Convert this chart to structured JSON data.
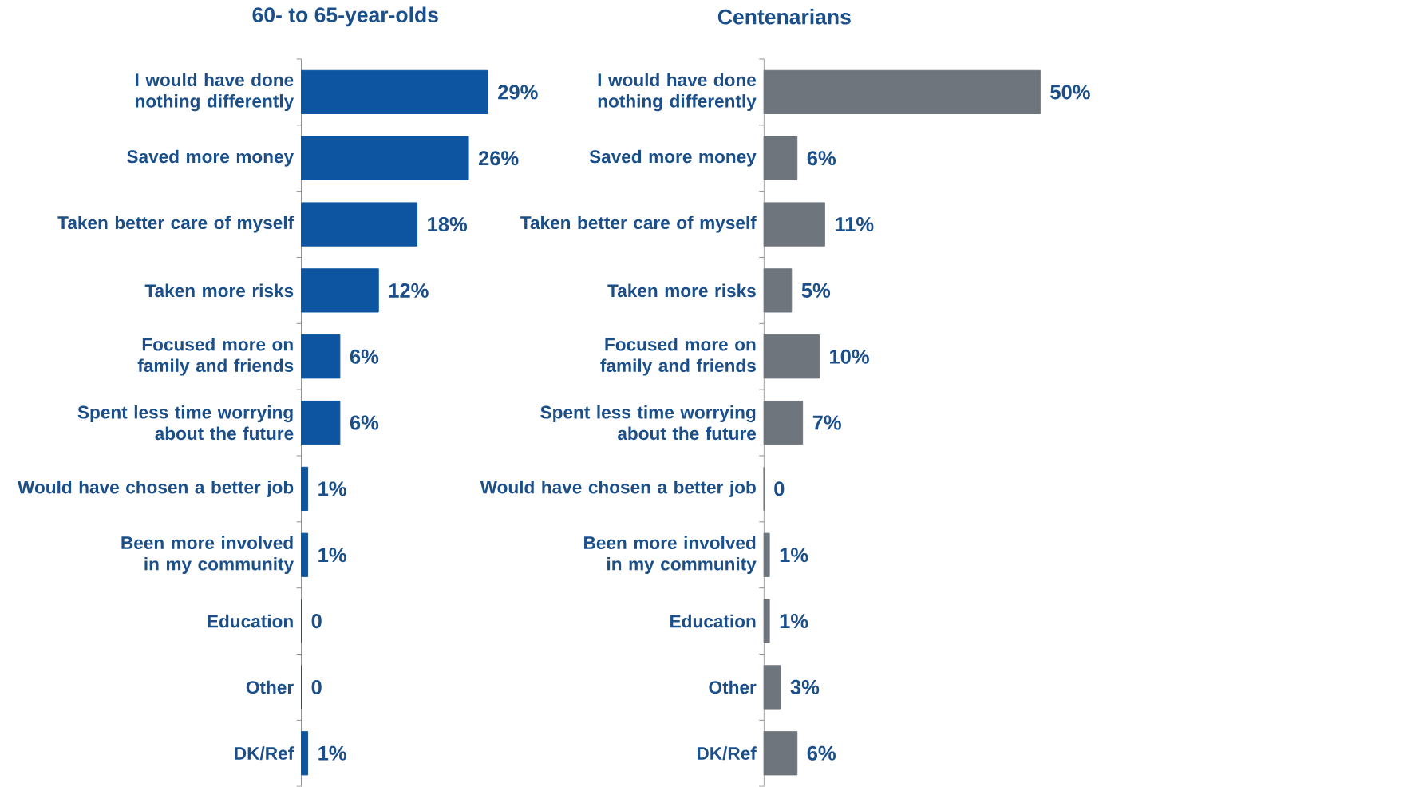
{
  "chart_data": [
    {
      "type": "bar",
      "orientation": "horizontal",
      "title": "60- to 65-year-olds",
      "color": "#0d55a0",
      "categories": [
        "I would have done nothing differently",
        "Saved more money",
        "Taken better care of myself",
        "Taken more risks",
        "Focused more on family and friends",
        "Spent less time worrying about the future",
        "Would have chosen a better job",
        "Been more involved in my community",
        "Education",
        "Other",
        "DK/Ref"
      ],
      "values": [
        29,
        26,
        18,
        12,
        6,
        6,
        1,
        1,
        0,
        0,
        1
      ],
      "value_labels": [
        "29%",
        "26%",
        "18%",
        "12%",
        "6%",
        "6%",
        "1%",
        "1%",
        "0",
        "0",
        "1%"
      ]
    },
    {
      "type": "bar",
      "orientation": "horizontal",
      "title": "Centenarians",
      "color": "#6e757c",
      "categories": [
        "I would have done nothing differently",
        "Saved more money",
        "Taken better care of myself",
        "Taken more risks",
        "Focused more on family and friends",
        "Spent less time worrying about the future",
        "Would have chosen a better job",
        "Been more involved in my community",
        "Education",
        "Other",
        "DK/Ref"
      ],
      "values": [
        50,
        6,
        11,
        5,
        10,
        7,
        0,
        1,
        1,
        3,
        6
      ],
      "value_labels": [
        "50%",
        "6%",
        "11%",
        "5%",
        "10%",
        "7%",
        "0",
        "1%",
        "1%",
        "3%",
        "6%"
      ]
    }
  ]
}
